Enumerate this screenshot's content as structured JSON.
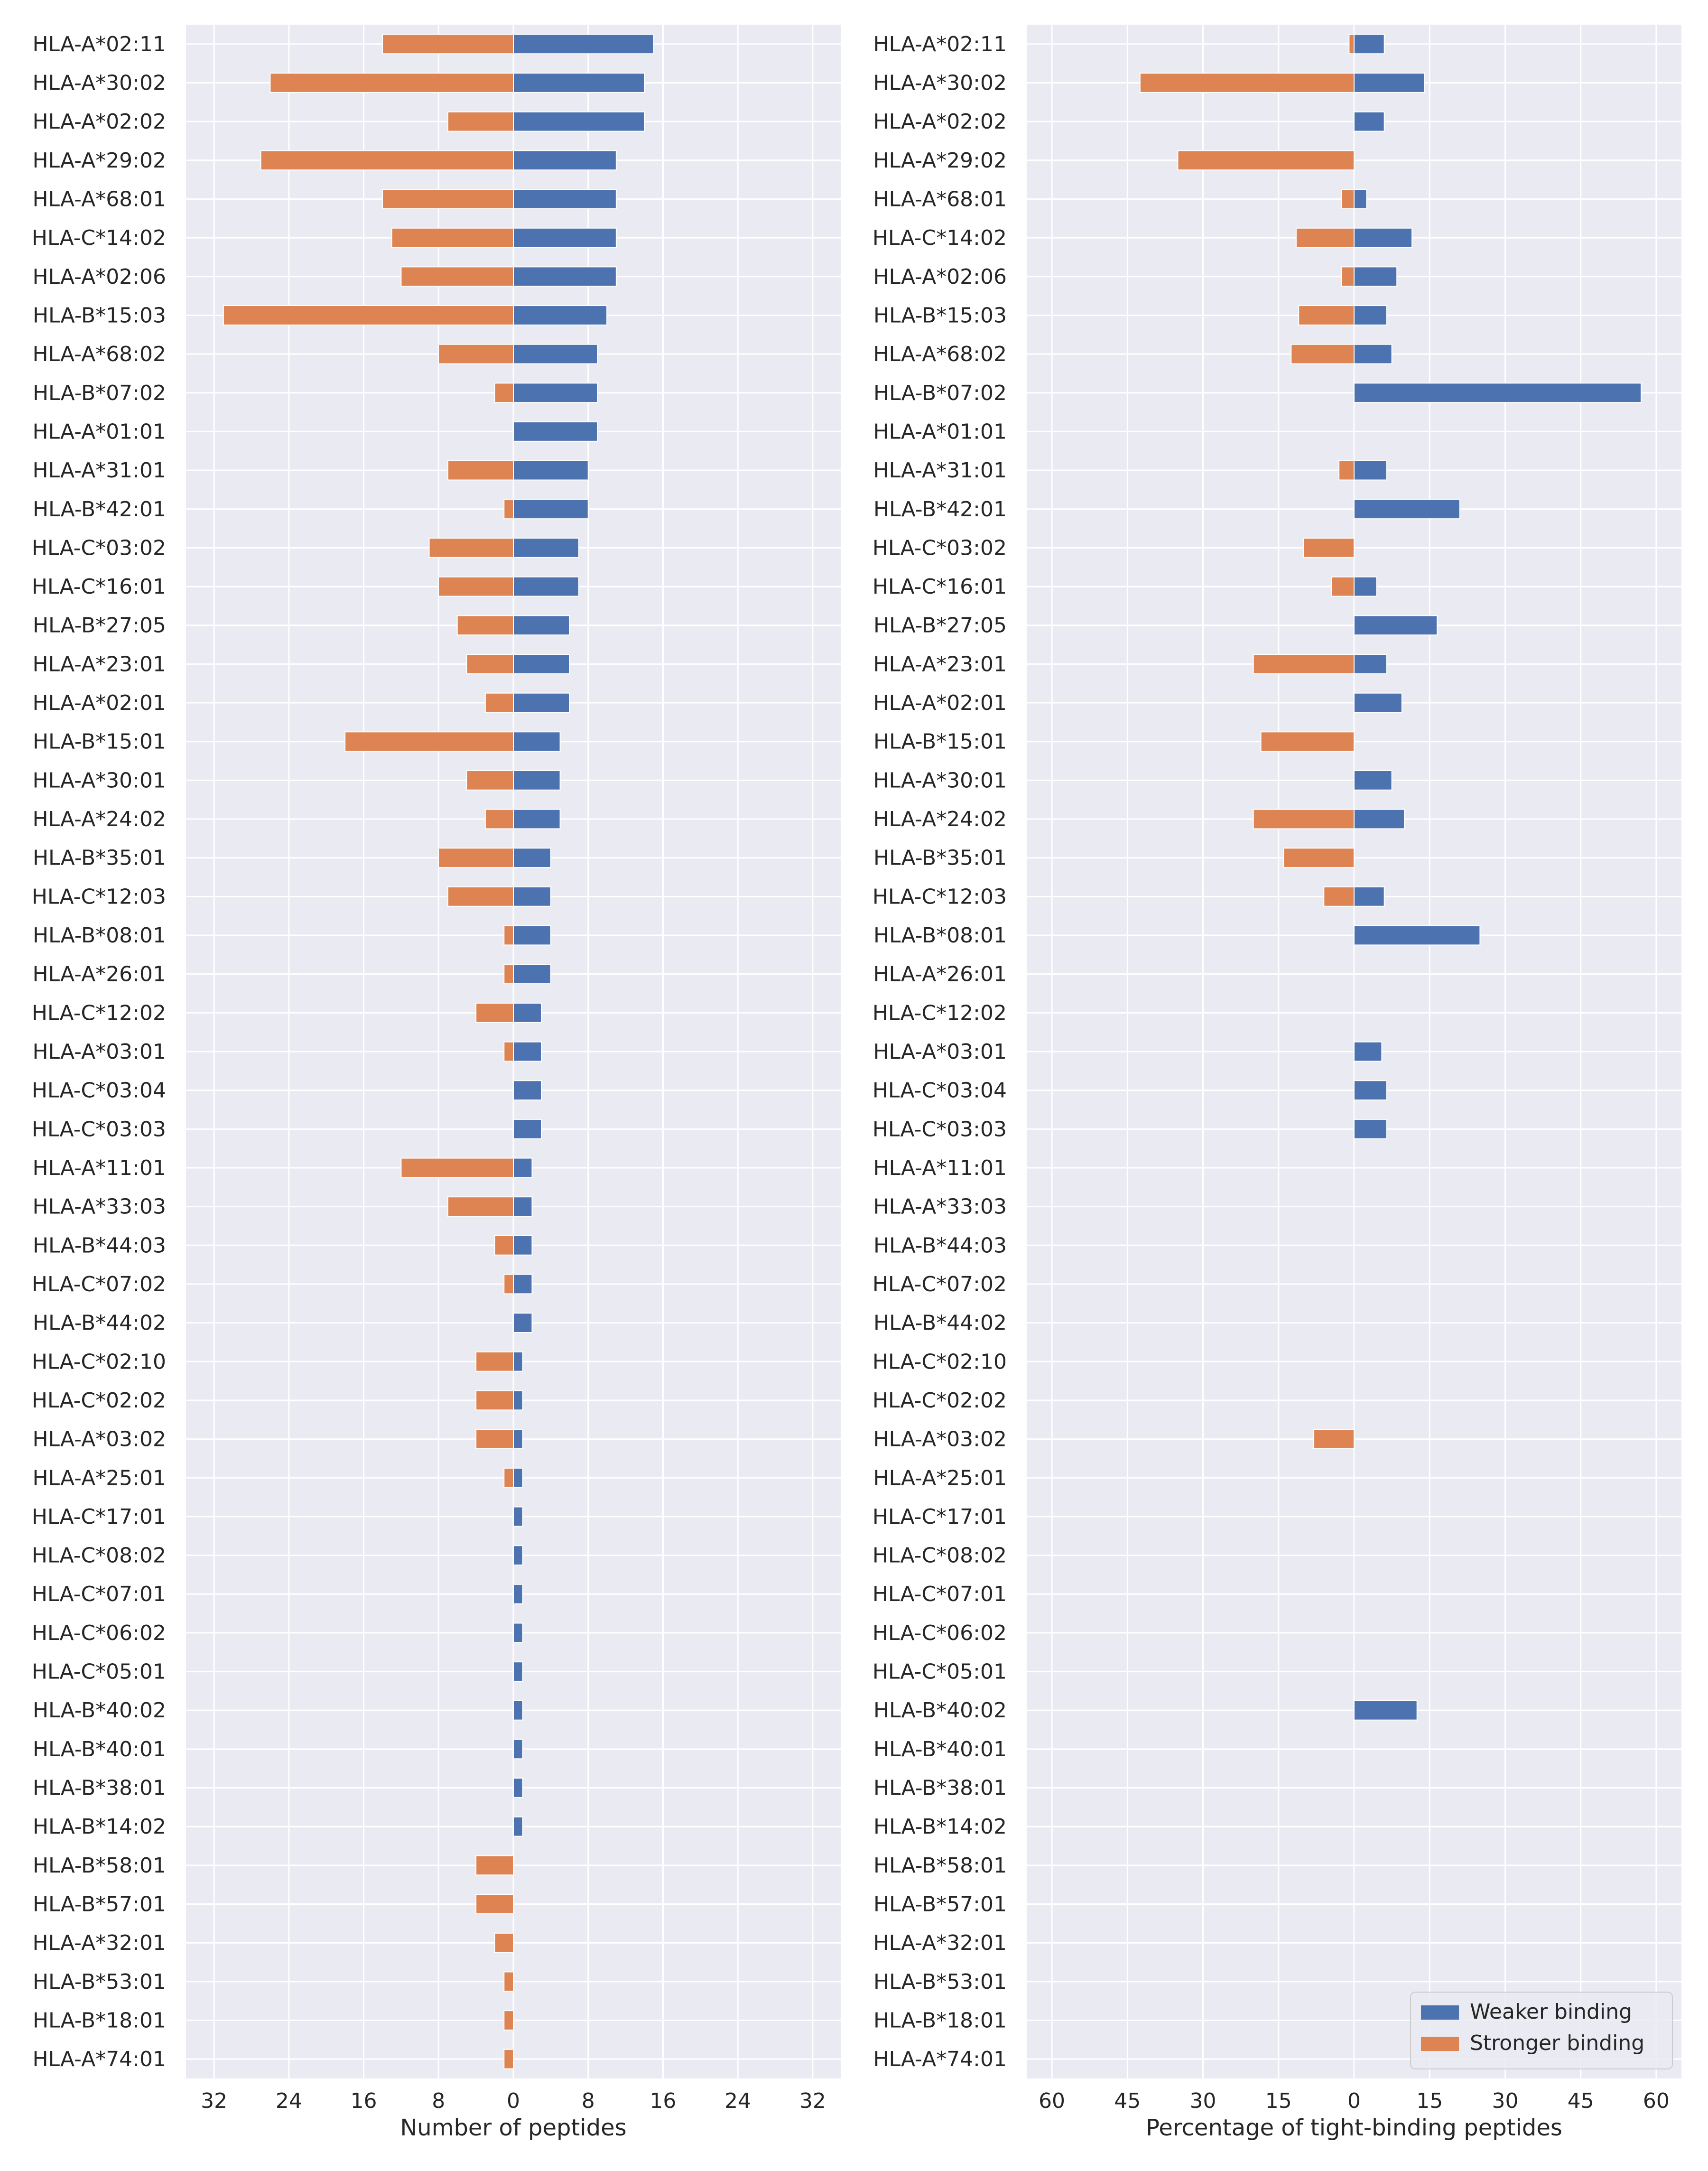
{
  "colors": {
    "weaker": "#4C72B0",
    "stronger": "#DD8452",
    "plot_bg": "#EAEAF2",
    "grid": "#FFFFFF",
    "text": "#262626"
  },
  "chart_data": [
    {
      "type": "bar",
      "orientation": "horizontal",
      "diverging": true,
      "xlabel": "Number of peptides",
      "xlim": [
        -35,
        35
      ],
      "xticks": [
        -32,
        -24,
        -16,
        -8,
        0,
        8,
        16,
        24,
        32
      ],
      "xtick_labels": [
        "32",
        "24",
        "16",
        "8",
        "0",
        "8",
        "16",
        "24",
        "32"
      ],
      "grid": true,
      "categories": [
        "HLA-A*02:11",
        "HLA-A*30:02",
        "HLA-A*02:02",
        "HLA-A*29:02",
        "HLA-A*68:01",
        "HLA-C*14:02",
        "HLA-A*02:06",
        "HLA-B*15:03",
        "HLA-A*68:02",
        "HLA-B*07:02",
        "HLA-A*01:01",
        "HLA-A*31:01",
        "HLA-B*42:01",
        "HLA-C*03:02",
        "HLA-C*16:01",
        "HLA-B*27:05",
        "HLA-A*23:01",
        "HLA-A*02:01",
        "HLA-B*15:01",
        "HLA-A*30:01",
        "HLA-A*24:02",
        "HLA-B*35:01",
        "HLA-C*12:03",
        "HLA-B*08:01",
        "HLA-A*26:01",
        "HLA-C*12:02",
        "HLA-A*03:01",
        "HLA-C*03:04",
        "HLA-C*03:03",
        "HLA-A*11:01",
        "HLA-A*33:03",
        "HLA-B*44:03",
        "HLA-C*07:02",
        "HLA-B*44:02",
        "HLA-C*02:10",
        "HLA-C*02:02",
        "HLA-A*03:02",
        "HLA-A*25:01",
        "HLA-C*17:01",
        "HLA-C*08:02",
        "HLA-C*07:01",
        "HLA-C*06:02",
        "HLA-C*05:01",
        "HLA-B*40:02",
        "HLA-B*40:01",
        "HLA-B*38:01",
        "HLA-B*14:02",
        "HLA-B*58:01",
        "HLA-B*57:01",
        "HLA-A*32:01",
        "HLA-B*53:01",
        "HLA-B*18:01",
        "HLA-A*74:01"
      ],
      "series": [
        {
          "name": "Weaker binding",
          "values": [
            15,
            14,
            14,
            11,
            11,
            11,
            11,
            10,
            9,
            9,
            9,
            8,
            8,
            7,
            7,
            6,
            6,
            6,
            5,
            5,
            5,
            4,
            4,
            4,
            4,
            3,
            3,
            3,
            3,
            2,
            2,
            2,
            2,
            2,
            1,
            1,
            1,
            1,
            1,
            1,
            1,
            1,
            1,
            1,
            1,
            1,
            1,
            0,
            0,
            0,
            0,
            0,
            0
          ]
        },
        {
          "name": "Stronger binding",
          "values": [
            14,
            26,
            7,
            27,
            14,
            13,
            12,
            31,
            8,
            2,
            0,
            7,
            1,
            9,
            8,
            6,
            5,
            3,
            18,
            5,
            3,
            8,
            7,
            1,
            1,
            4,
            1,
            0,
            0,
            12,
            7,
            2,
            1,
            0,
            4,
            4,
            4,
            1,
            0,
            0,
            0,
            0,
            0,
            0,
            0,
            0,
            0,
            4,
            4,
            2,
            1,
            1,
            1
          ]
        }
      ]
    },
    {
      "type": "bar",
      "orientation": "horizontal",
      "diverging": true,
      "xlabel": "Percentage of tight-binding peptides",
      "xlim": [
        -65,
        65
      ],
      "xticks": [
        -60,
        -45,
        -30,
        -15,
        0,
        15,
        30,
        45,
        60
      ],
      "xtick_labels": [
        "60",
        "45",
        "30",
        "15",
        "0",
        "15",
        "30",
        "45",
        "60"
      ],
      "grid": true,
      "legend_position": "bottom-right",
      "categories": [
        "HLA-A*02:11",
        "HLA-A*30:02",
        "HLA-A*02:02",
        "HLA-A*29:02",
        "HLA-A*68:01",
        "HLA-C*14:02",
        "HLA-A*02:06",
        "HLA-B*15:03",
        "HLA-A*68:02",
        "HLA-B*07:02",
        "HLA-A*01:01",
        "HLA-A*31:01",
        "HLA-B*42:01",
        "HLA-C*03:02",
        "HLA-C*16:01",
        "HLA-B*27:05",
        "HLA-A*23:01",
        "HLA-A*02:01",
        "HLA-B*15:01",
        "HLA-A*30:01",
        "HLA-A*24:02",
        "HLA-B*35:01",
        "HLA-C*12:03",
        "HLA-B*08:01",
        "HLA-A*26:01",
        "HLA-C*12:02",
        "HLA-A*03:01",
        "HLA-C*03:04",
        "HLA-C*03:03",
        "HLA-A*11:01",
        "HLA-A*33:03",
        "HLA-B*44:03",
        "HLA-C*07:02",
        "HLA-B*44:02",
        "HLA-C*02:10",
        "HLA-C*02:02",
        "HLA-A*03:02",
        "HLA-A*25:01",
        "HLA-C*17:01",
        "HLA-C*08:02",
        "HLA-C*07:01",
        "HLA-C*06:02",
        "HLA-C*05:01",
        "HLA-B*40:02",
        "HLA-B*40:01",
        "HLA-B*38:01",
        "HLA-B*14:02",
        "HLA-B*58:01",
        "HLA-B*57:01",
        "HLA-A*32:01",
        "HLA-B*53:01",
        "HLA-B*18:01",
        "HLA-A*74:01"
      ],
      "series": [
        {
          "name": "Weaker binding",
          "values": [
            6,
            14,
            6,
            0,
            2.5,
            11.5,
            8.5,
            6.5,
            7.5,
            57,
            0,
            6.5,
            21,
            0,
            4.5,
            16.5,
            6.5,
            9.5,
            0,
            7.5,
            10,
            0,
            6,
            25,
            0,
            0,
            5.5,
            6.5,
            6.5,
            0,
            0,
            0,
            0,
            0,
            0,
            0,
            0,
            0,
            0,
            0,
            0,
            0,
            0,
            12.5,
            0,
            0,
            0,
            0,
            0,
            0,
            0,
            0,
            0
          ]
        },
        {
          "name": "Stronger binding",
          "values": [
            1,
            42.5,
            0,
            35,
            2.5,
            11.5,
            2.5,
            11,
            12.5,
            0,
            0,
            3,
            0,
            10,
            4.5,
            0,
            20,
            0,
            18.5,
            0,
            20,
            14,
            6,
            0,
            0,
            0,
            0,
            0,
            0,
            0,
            0,
            0,
            0,
            0,
            0,
            0,
            8,
            0,
            0,
            0,
            0,
            0,
            0,
            0,
            0,
            0,
            0,
            0,
            0,
            0,
            0,
            0,
            0
          ]
        }
      ]
    }
  ]
}
